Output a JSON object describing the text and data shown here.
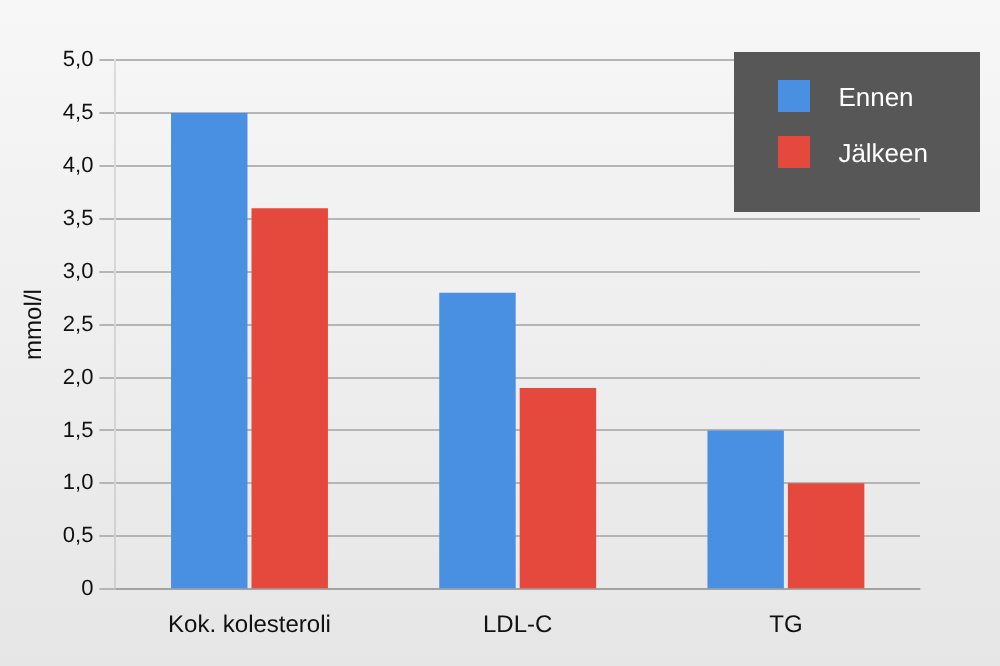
{
  "chart_data": {
    "type": "bar",
    "ylabel": "mmol/l",
    "categories": [
      "Kok. kolesteroli",
      "LDL-C",
      "TG"
    ],
    "series": [
      {
        "name": "Ennen",
        "color": "#4a90e2",
        "values": [
          4.5,
          2.8,
          1.5
        ]
      },
      {
        "name": "Jälkeen",
        "color": "#e5483d",
        "values": [
          3.6,
          1.9,
          1.0
        ]
      }
    ],
    "ylim": [
      0,
      5
    ],
    "yticks": [
      0,
      {
        "value": 0.5,
        "label": "0,5"
      },
      {
        "value": 1,
        "label": "1,0"
      },
      {
        "value": 1.5,
        "label": "1,5"
      },
      {
        "value": 2,
        "label": "2,0"
      },
      {
        "value": 2.5,
        "label": "2,5"
      },
      {
        "value": 3,
        "label": "3,0"
      },
      {
        "value": 3.5,
        "label": "3,5"
      },
      {
        "value": 4,
        "label": "4,0"
      },
      {
        "value": 4.5,
        "label": "4,5"
      },
      {
        "value": 5,
        "label": "5,0"
      }
    ],
    "grid": "y",
    "legend": "top right"
  }
}
